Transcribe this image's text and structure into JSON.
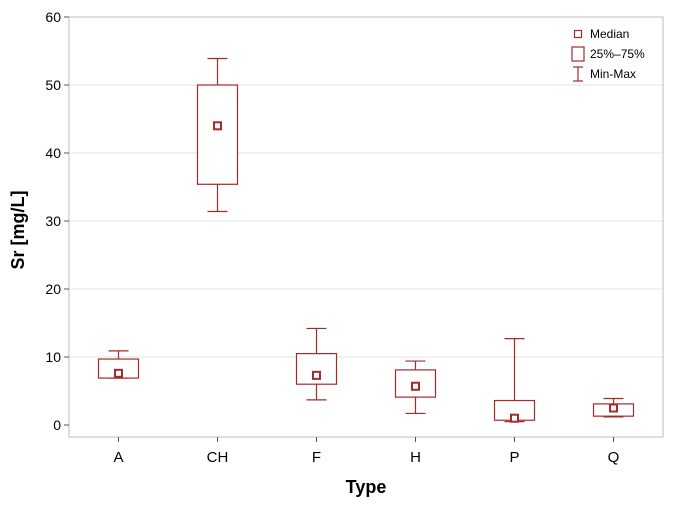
{
  "chart_data": {
    "type": "box",
    "title": "",
    "xlabel": "Type",
    "ylabel": "Sr [mg/L]",
    "ylim": [
      0,
      60
    ],
    "yticks": [
      0,
      10,
      20,
      30,
      40,
      50,
      60
    ],
    "grid": true,
    "legend_position": "top-right",
    "categories": [
      "A",
      "CH",
      "F",
      "H",
      "P",
      "Q"
    ],
    "series": [
      {
        "name": "Sr",
        "color": "#a52a2a",
        "boxes": [
          {
            "category": "A",
            "min": 6.9,
            "q1": 6.9,
            "median": 7.6,
            "q3": 9.7,
            "max": 10.9
          },
          {
            "category": "CH",
            "min": 31.4,
            "q1": 35.4,
            "median": 44.0,
            "q3": 50.0,
            "max": 53.9
          },
          {
            "category": "F",
            "min": 3.7,
            "q1": 6.0,
            "median": 7.3,
            "q3": 10.5,
            "max": 14.2
          },
          {
            "category": "H",
            "min": 1.7,
            "q1": 4.1,
            "median": 5.7,
            "q3": 8.1,
            "max": 9.4
          },
          {
            "category": "P",
            "min": 0.5,
            "q1": 0.7,
            "median": 1.0,
            "q3": 3.6,
            "max": 12.7
          },
          {
            "category": "Q",
            "min": 1.2,
            "q1": 1.3,
            "median": 2.5,
            "q3": 3.1,
            "max": 3.9
          }
        ]
      }
    ],
    "legend": {
      "entries": [
        {
          "marker": "square",
          "label": "Median"
        },
        {
          "marker": "box",
          "label": "25%–75%"
        },
        {
          "marker": "whisker",
          "label": "Min-Max"
        }
      ]
    }
  }
}
